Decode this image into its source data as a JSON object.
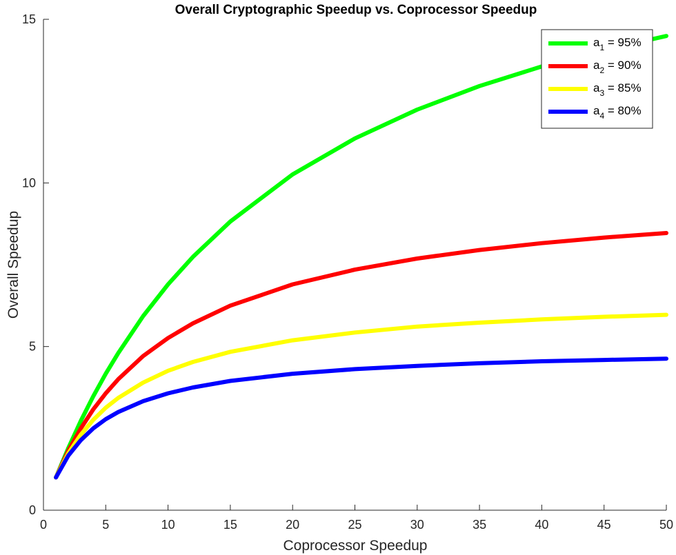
{
  "chart_data": {
    "type": "line",
    "title": "Overall Cryptographic Speedup vs. Coprocessor Speedup",
    "xlabel": "Coprocessor Speedup",
    "ylabel": "Overall Speedup",
    "xlim": [
      0,
      50
    ],
    "ylim": [
      0,
      15
    ],
    "xticks": [
      0,
      5,
      10,
      15,
      20,
      25,
      30,
      35,
      40,
      45,
      50
    ],
    "yticks": [
      0,
      5,
      10,
      15
    ],
    "grid": false,
    "legend_position": "top-right",
    "series": [
      {
        "name": "a1 = 95%",
        "label_base": "a",
        "label_sub": "1",
        "label_rest": " = 95%",
        "color": "#00ff00",
        "x": [
          1,
          2,
          3,
          4,
          5,
          6,
          8,
          10,
          12,
          15,
          20,
          25,
          30,
          35,
          40,
          45,
          50
        ],
        "y": [
          1.0,
          1.9,
          2.73,
          3.48,
          4.17,
          4.8,
          5.93,
          6.9,
          7.74,
          8.82,
          10.26,
          11.36,
          12.24,
          12.96,
          13.56,
          14.06,
          14.49
        ]
      },
      {
        "name": "a2 = 90%",
        "label_base": "a",
        "label_sub": "2",
        "label_rest": " = 90%",
        "color": "#ff0000",
        "x": [
          1,
          2,
          3,
          4,
          5,
          6,
          8,
          10,
          12,
          15,
          20,
          25,
          30,
          35,
          40,
          45,
          50
        ],
        "y": [
          1.0,
          1.82,
          2.5,
          3.08,
          3.57,
          4.0,
          4.71,
          5.26,
          5.71,
          6.25,
          6.9,
          7.35,
          7.69,
          7.95,
          8.16,
          8.33,
          8.47
        ]
      },
      {
        "name": "a3 = 85%",
        "label_base": "a",
        "label_sub": "3",
        "label_rest": " = 85%",
        "color": "#ffff00",
        "x": [
          1,
          2,
          3,
          4,
          5,
          6,
          8,
          10,
          12,
          15,
          20,
          25,
          30,
          35,
          40,
          45,
          50
        ],
        "y": [
          1.0,
          1.74,
          2.31,
          2.76,
          3.13,
          3.43,
          3.9,
          4.26,
          4.53,
          4.84,
          5.19,
          5.43,
          5.61,
          5.73,
          5.83,
          5.91,
          5.97
        ]
      },
      {
        "name": "a4 = 80%",
        "label_base": "a",
        "label_sub": "4",
        "label_rest": " = 80%",
        "color": "#0000ff",
        "x": [
          1,
          2,
          3,
          4,
          5,
          6,
          8,
          10,
          12,
          15,
          20,
          25,
          30,
          35,
          40,
          45,
          50
        ],
        "y": [
          1.0,
          1.67,
          2.14,
          2.5,
          2.78,
          3.0,
          3.33,
          3.57,
          3.75,
          3.95,
          4.17,
          4.31,
          4.41,
          4.49,
          4.55,
          4.59,
          4.63
        ]
      }
    ]
  }
}
